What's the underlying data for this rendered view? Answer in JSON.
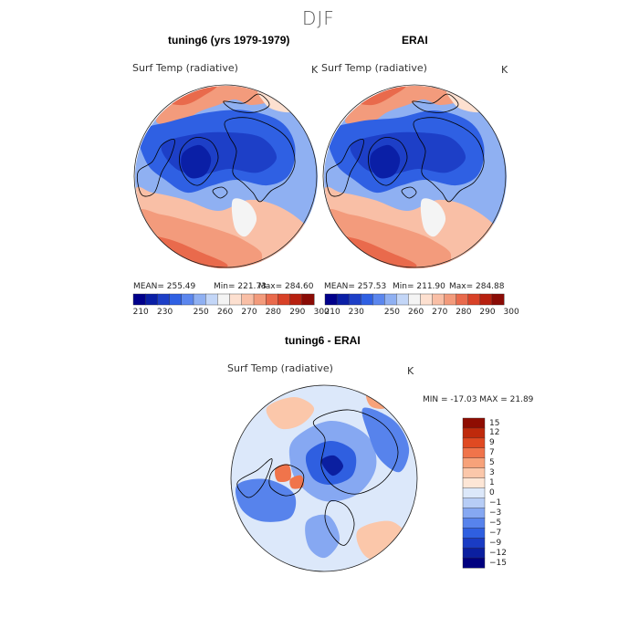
{
  "figure": {
    "season": "DJF",
    "panels": [
      {
        "id": "model",
        "title": "tuning6 (yrs 1979-1979)",
        "variable": "Surf Temp (radiative)",
        "units": "K",
        "stats": {
          "mean": "MEAN= 255.49",
          "min": "Min= 221.73",
          "max": "Max= 284.60"
        }
      },
      {
        "id": "obs",
        "title": "ERAI",
        "variable": "Surf Temp (radiative)",
        "units": "K",
        "stats": {
          "mean": "MEAN= 257.53",
          "min": "Min= 211.90",
          "max": "Max= 284.88"
        }
      },
      {
        "id": "diff",
        "title": "tuning6 - ERAI",
        "variable": "Surf Temp (radiative)",
        "units": "K",
        "stats": {
          "minmax": "MIN = -17.03 MAX =  21.89"
        }
      }
    ]
  },
  "colors": {
    "abs_scale": [
      "#00008b",
      "#0a1fa6",
      "#1d3fc7",
      "#2f60e3",
      "#5b86ee",
      "#8fb0f2",
      "#c3d6f7",
      "#f4f4f4",
      "#fde0d0",
      "#f9bfa6",
      "#f39b7c",
      "#e96a4c",
      "#d84127",
      "#b7200f",
      "#8a0b05"
    ],
    "diff_scale": [
      "#00007f",
      "#0b1fa0",
      "#1a3cc4",
      "#2f5fe0",
      "#5783ec",
      "#86a8f2",
      "#b7cdf6",
      "#dce8fa",
      "#fde6d6",
      "#fbc7aa",
      "#f7a27a",
      "#f0744b",
      "#e04a22",
      "#bf2a0c",
      "#8f0d02"
    ],
    "land_outline": "#000000"
  },
  "chart_data": [
    {
      "type": "heatmap",
      "projection": "north-polar-stereographic",
      "title": "tuning6 (yrs 1979-1979)",
      "variable": "Surf Temp (radiative)",
      "units": "K",
      "mean": 255.49,
      "min": 221.73,
      "max": 284.6,
      "colorbar_ticks": [
        "210",
        "230",
        "250",
        "260",
        "270",
        "280",
        "290",
        "300"
      ],
      "colorbar_levels": [
        210,
        220,
        230,
        240,
        245,
        250,
        255,
        260,
        265,
        270,
        275,
        280,
        285,
        290,
        295,
        300
      ]
    },
    {
      "type": "heatmap",
      "projection": "north-polar-stereographic",
      "title": "ERAI",
      "variable": "Surf Temp (radiative)",
      "units": "K",
      "mean": 257.53,
      "min": 211.9,
      "max": 284.88,
      "colorbar_ticks": [
        "210",
        "230",
        "250",
        "260",
        "270",
        "280",
        "290",
        "300"
      ],
      "colorbar_levels": [
        210,
        220,
        230,
        240,
        245,
        250,
        255,
        260,
        265,
        270,
        275,
        280,
        285,
        290,
        295,
        300
      ]
    },
    {
      "type": "heatmap",
      "projection": "north-polar-stereographic",
      "title": "tuning6 - ERAI",
      "variable": "Surf Temp (radiative)",
      "units": "K",
      "min": -17.03,
      "max": 21.89,
      "colorbar_ticks": [
        "15",
        "12",
        "9",
        "7",
        "5",
        "3",
        "1",
        "0",
        "−1",
        "−3",
        "−5",
        "−7",
        "−9",
        "−12",
        "−15"
      ]
    }
  ]
}
